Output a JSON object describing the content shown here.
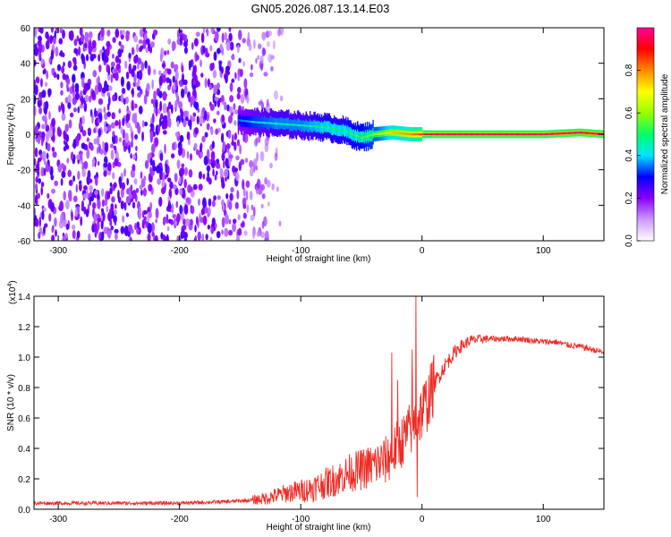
{
  "title": "GN05.2026.087.13.14.E03",
  "chart_data": [
    {
      "type": "heatmap",
      "xlabel": "Height of straight line (km)",
      "ylabel": "Frequency (Hz)",
      "xlim": [
        -320,
        150
      ],
      "ylim": [
        -60,
        60
      ],
      "x_ticks": [
        -300,
        -200,
        -100,
        0,
        100
      ],
      "x_tick_labels": [
        "-300",
        "-200",
        "-100",
        "0",
        "100"
      ],
      "y_ticks": [
        -60,
        -40,
        -20,
        0,
        20,
        40,
        60
      ],
      "y_tick_labels": [
        "-60",
        "-40",
        "-20",
        "0",
        "20",
        "40",
        "60"
      ],
      "colorbar": {
        "label": "Normalized spectral amplitude",
        "range": [
          0,
          1
        ],
        "ticks": [
          0,
          0.2,
          0.4,
          0.6,
          0.8
        ],
        "tick_labels": [
          "0.0",
          "0.2",
          "0.4",
          "0.6",
          "0.8"
        ],
        "colors": [
          "#ffffff",
          "#cc99ff",
          "#8800ff",
          "#0000ff",
          "#00e5ff",
          "#00ff66",
          "#99ff00",
          "#ffff00",
          "#ff8800",
          "#ff0000",
          "#ff0099"
        ]
      },
      "noise_region_x": [
        -320,
        -115
      ],
      "signal_track": [
        {
          "x": -152,
          "y": 8,
          "amp": 0.35
        },
        {
          "x": -140,
          "y": 7,
          "amp": 0.4
        },
        {
          "x": -120,
          "y": 6,
          "amp": 0.45
        },
        {
          "x": -100,
          "y": 5,
          "amp": 0.45
        },
        {
          "x": -80,
          "y": 4,
          "amp": 0.5
        },
        {
          "x": -65,
          "y": 2,
          "amp": 0.5
        },
        {
          "x": -50,
          "y": -2,
          "amp": 0.55
        },
        {
          "x": -40,
          "y": 0,
          "amp": 0.6
        },
        {
          "x": -25,
          "y": 1,
          "amp": 0.75
        },
        {
          "x": -10,
          "y": 0,
          "amp": 0.8
        },
        {
          "x": 10,
          "y": 0,
          "amp": 0.95
        },
        {
          "x": 50,
          "y": 0,
          "amp": 0.95
        },
        {
          "x": 100,
          "y": 0,
          "amp": 0.95
        },
        {
          "x": 130,
          "y": 1,
          "amp": 0.95
        },
        {
          "x": 150,
          "y": 0,
          "amp": 0.95
        }
      ]
    },
    {
      "type": "line",
      "xlabel": "Height of straight line (km)",
      "ylabel": "SNR (10 * v/v)",
      "y_multiplier": "(x10",
      "y_multiplier_exp": "4",
      "y_multiplier_close": ")",
      "xlim": [
        -320,
        150
      ],
      "ylim": [
        0,
        1.4
      ],
      "x_ticks": [
        -300,
        -200,
        -100,
        0,
        100
      ],
      "x_tick_labels": [
        "-300",
        "-200",
        "-100",
        "0",
        "100"
      ],
      "y_ticks": [
        0,
        0.2,
        0.4,
        0.6,
        0.8,
        1.0,
        1.2,
        1.4
      ],
      "y_tick_labels": [
        "0.0",
        "0.2",
        "0.4",
        "0.6",
        "0.8",
        "1.0",
        "1.2",
        "1.4"
      ],
      "color": "#ee2b24",
      "series": [
        {
          "x": [
            -320,
            -300,
            -250,
            -200,
            -160,
            -140,
            -130,
            -120,
            -110,
            -100,
            -90,
            -80,
            -70,
            -60,
            -50,
            -40,
            -30,
            -25,
            -20,
            -15,
            -10,
            -5,
            0,
            5,
            10,
            20,
            30,
            40,
            50,
            60,
            70,
            80,
            90,
            100,
            110,
            120,
            130,
            140,
            150
          ],
          "values": [
            0.04,
            0.04,
            0.04,
            0.04,
            0.05,
            0.06,
            0.07,
            0.09,
            0.11,
            0.12,
            0.14,
            0.17,
            0.2,
            0.24,
            0.26,
            0.29,
            0.32,
            0.36,
            0.42,
            0.46,
            0.52,
            0.58,
            0.64,
            0.72,
            0.82,
            0.96,
            1.06,
            1.11,
            1.12,
            1.12,
            1.12,
            1.12,
            1.11,
            1.1,
            1.1,
            1.08,
            1.07,
            1.05,
            1.03
          ]
        }
      ],
      "spikes": [
        {
          "x": -25,
          "y": 1.03
        },
        {
          "x": -20,
          "y": 0.85
        },
        {
          "x": -8,
          "y": 1.05
        },
        {
          "x": -5,
          "y": 1.45
        },
        {
          "x": -4,
          "y": 0.08
        }
      ]
    }
  ]
}
